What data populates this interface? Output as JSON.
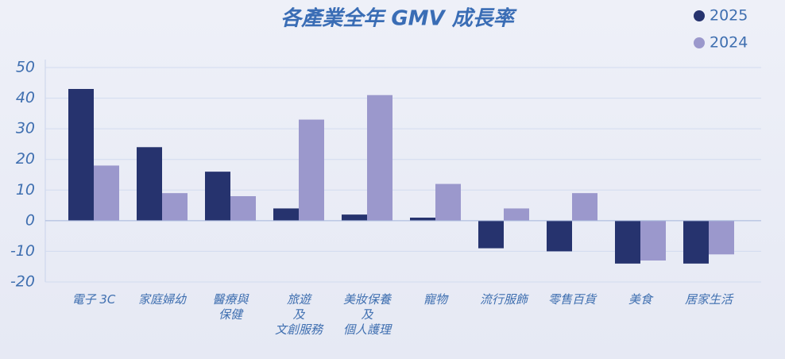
{
  "chart_data": {
    "type": "bar",
    "title": "各產業全年 GMV 成長率",
    "categories": [
      "電子 3C",
      "家庭婦幼",
      "醫療與\n保健",
      "旅遊\n及\n文創服務",
      "美妝保養\n及\n個人護理",
      "寵物",
      "流行服飾",
      "零售百貨",
      "美食",
      "居家生活"
    ],
    "series": [
      {
        "name": "2025",
        "color": "#26336e",
        "values": [
          43,
          24,
          16,
          4,
          2,
          1,
          -9,
          -10,
          -14,
          -14
        ]
      },
      {
        "name": "2024",
        "color": "#9b98cc",
        "values": [
          18,
          9,
          8,
          33,
          41,
          12,
          4,
          9,
          -13,
          -11
        ]
      }
    ],
    "ylim": [
      -20,
      50
    ],
    "yticks": [
      -20,
      -10,
      0,
      10,
      20,
      30,
      40,
      50
    ],
    "grid": true,
    "legend": "top-right"
  }
}
